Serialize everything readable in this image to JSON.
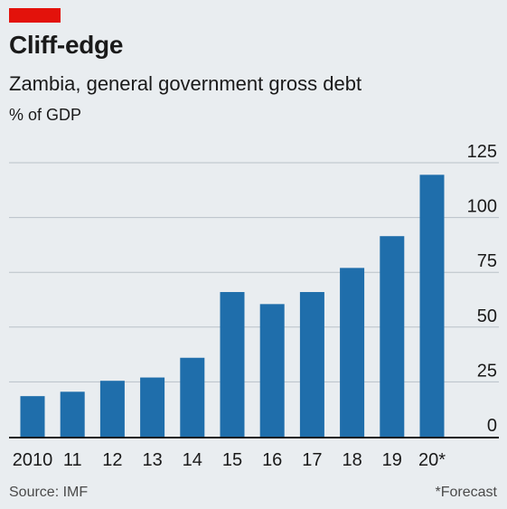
{
  "header": {
    "title": "Cliff-edge",
    "subtitle": "Zambia, general government gross debt",
    "unit": "% of GDP"
  },
  "footer": {
    "source": "Source: IMF",
    "note": "*Forecast"
  },
  "colors": {
    "accent": "#e3120b",
    "bar": "#1f6eab",
    "background": "#e9edf0",
    "grid": "#b9c1c8"
  },
  "chart_data": {
    "type": "bar",
    "title": "Cliff-edge",
    "subtitle": "Zambia, general government gross debt",
    "ylabel": "% of GDP",
    "xlabel": "",
    "categories": [
      "2010",
      "11",
      "12",
      "13",
      "14",
      "15",
      "16",
      "17",
      "18",
      "19",
      "20*"
    ],
    "values": [
      18.5,
      20.5,
      25.5,
      27,
      36,
      66,
      60.5,
      66,
      77,
      91.5,
      119.5
    ],
    "ylim": [
      0,
      125
    ],
    "yticks": [
      0,
      25,
      50,
      75,
      100,
      125
    ],
    "grid": true,
    "y_axis_position": "right"
  }
}
